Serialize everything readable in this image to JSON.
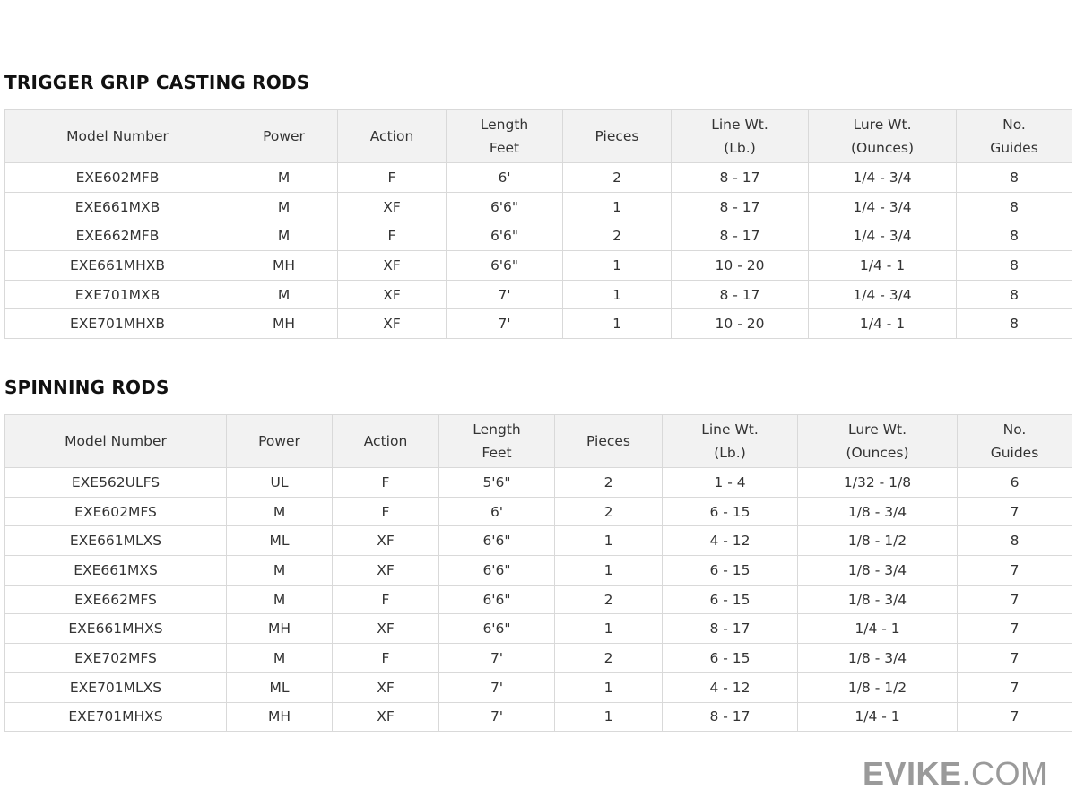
{
  "sections": [
    {
      "title": "TRIGGER GRIP CASTING RODS",
      "headers": [
        "Model Number",
        "Power",
        "Action",
        "Length\nFeet",
        "Pieces",
        "Line Wt.\n(Lb.)",
        "Lure Wt.\n(Ounces)",
        "No.\nGuides"
      ],
      "rows": [
        [
          "EXE602MFB",
          "M",
          "F",
          "6'",
          "2",
          "8 - 17",
          "1/4 - 3/4",
          "8"
        ],
        [
          "EXE661MXB",
          "M",
          "XF",
          "6'6\"",
          "1",
          "8 - 17",
          "1/4 - 3/4",
          "8"
        ],
        [
          "EXE662MFB",
          "M",
          "F",
          "6'6\"",
          "2",
          "8 - 17",
          "1/4 - 3/4",
          "8"
        ],
        [
          "EXE661MHXB",
          "MH",
          "XF",
          "6'6\"",
          "1",
          "10 - 20",
          "1/4 - 1",
          "8"
        ],
        [
          "EXE701MXB",
          "M",
          "XF",
          "7'",
          "1",
          "8 - 17",
          "1/4 - 3/4",
          "8"
        ],
        [
          "EXE701MHXB",
          "MH",
          "XF",
          "7'",
          "1",
          "10 - 20",
          "1/4 - 1",
          "8"
        ]
      ]
    },
    {
      "title": "SPINNING RODS",
      "headers": [
        "Model Number",
        "Power",
        "Action",
        "Length\nFeet",
        "Pieces",
        "Line Wt.\n(Lb.)",
        "Lure Wt.\n(Ounces)",
        "No.\nGuides"
      ],
      "rows": [
        [
          "EXE562ULFS",
          "UL",
          "F",
          "5'6\"",
          "2",
          "1 - 4",
          "1/32 - 1/8",
          "6"
        ],
        [
          "EXE602MFS",
          "M",
          "F",
          "6'",
          "2",
          "6 - 15",
          "1/8 - 3/4",
          "7"
        ],
        [
          "EXE661MLXS",
          "ML",
          "XF",
          "6'6\"",
          "1",
          "4 - 12",
          "1/8 - 1/2",
          "8"
        ],
        [
          "EXE661MXS",
          "M",
          "XF",
          "6'6\"",
          "1",
          "6 - 15",
          "1/8 - 3/4",
          "7"
        ],
        [
          "EXE662MFS",
          "M",
          "F",
          "6'6\"",
          "2",
          "6 - 15",
          "1/8 - 3/4",
          "7"
        ],
        [
          "EXE661MHXS",
          "MH",
          "XF",
          "6'6\"",
          "1",
          "8 - 17",
          "1/4 - 1",
          "7"
        ],
        [
          "EXE702MFS",
          "M",
          "F",
          "7'",
          "2",
          "6 - 15",
          "1/8 - 3/4",
          "7"
        ],
        [
          "EXE701MLXS",
          "ML",
          "XF",
          "7'",
          "1",
          "4 - 12",
          "1/8 - 1/2",
          "7"
        ],
        [
          "EXE701MHXS",
          "MH",
          "XF",
          "7'",
          "1",
          "8 - 17",
          "1/4 - 1",
          "7"
        ]
      ]
    }
  ],
  "logo": {
    "bold": "EVIKE",
    "light": ".COM"
  }
}
